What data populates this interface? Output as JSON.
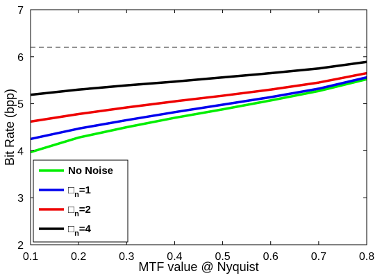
{
  "chart_data": {
    "type": "line",
    "xlabel": "MTF value @ Nyquist",
    "ylabel": "Bit Rate (bpp)",
    "xlim": [
      0.1,
      0.8
    ],
    "ylim": [
      2,
      7
    ],
    "xticks": [
      "0.1",
      "0.2",
      "0.3",
      "0.4",
      "0.5",
      "0.6",
      "0.7",
      "0.8"
    ],
    "yticks": [
      "2",
      "3",
      "4",
      "5",
      "6",
      "7"
    ],
    "grid": false,
    "legend_position": "bottom-left",
    "reference_line": {
      "y": 6.2,
      "style": "dashed",
      "color": "#888888"
    },
    "x": [
      0.1,
      0.2,
      0.3,
      0.4,
      0.5,
      0.6,
      0.7,
      0.8
    ],
    "series": [
      {
        "name": "No Noise",
        "color": "#00ee00",
        "values": [
          3.97,
          4.28,
          4.5,
          4.7,
          4.88,
          5.07,
          5.27,
          5.52
        ]
      },
      {
        "name_main": "□",
        "name_sub": "n",
        "name_suffix": "=1",
        "color": "#0000ee",
        "values": [
          4.25,
          4.47,
          4.65,
          4.82,
          4.98,
          5.14,
          5.32,
          5.56
        ]
      },
      {
        "name_main": "□",
        "name_sub": "n",
        "name_suffix": "=2",
        "color": "#ee0000",
        "values": [
          4.62,
          4.78,
          4.92,
          5.05,
          5.17,
          5.3,
          5.45,
          5.65
        ]
      },
      {
        "name_main": "□",
        "name_sub": "n",
        "name_suffix": "=4",
        "color": "#000000",
        "values": [
          5.19,
          5.3,
          5.39,
          5.47,
          5.56,
          5.65,
          5.75,
          5.89
        ]
      }
    ]
  }
}
